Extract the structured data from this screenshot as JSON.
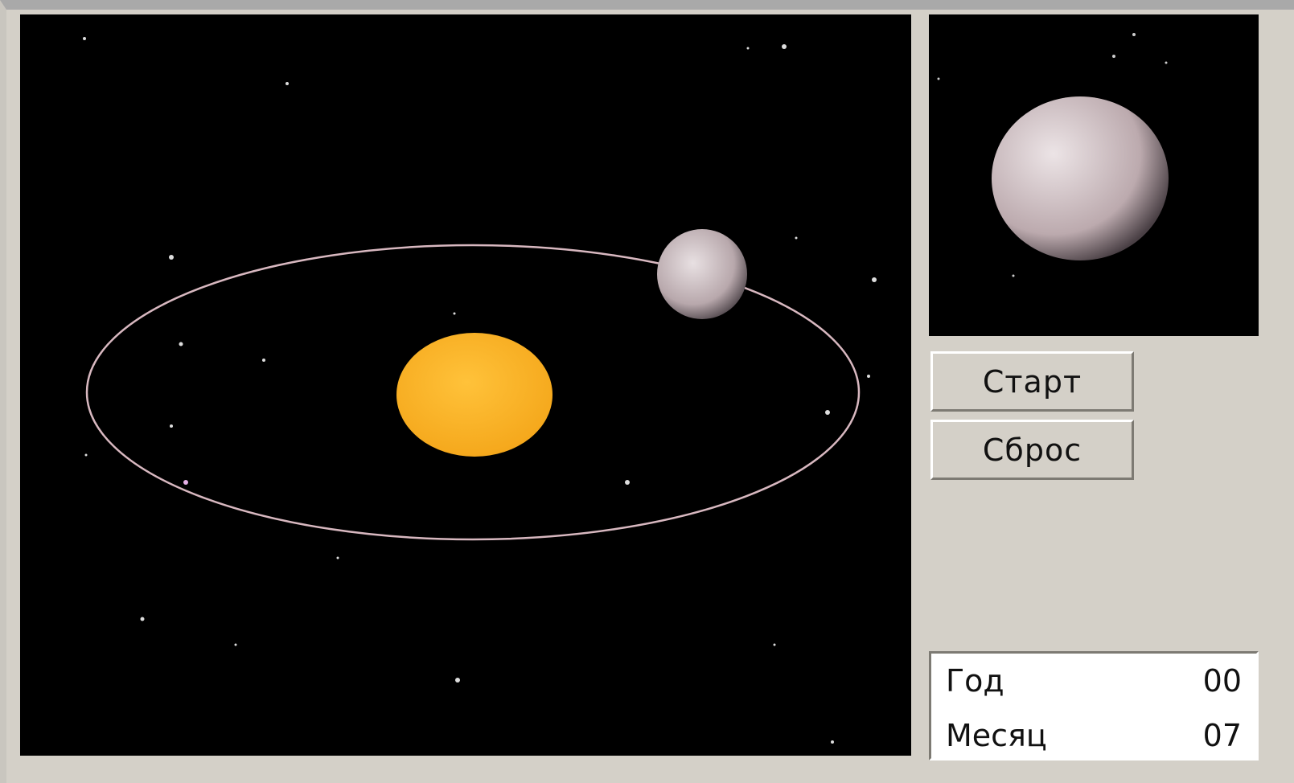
{
  "buttons": [
    {
      "label": "Старт"
    },
    {
      "label": "Сброс"
    }
  ],
  "info": {
    "rows": [
      [
        "Год",
        "00"
      ],
      [
        "Месяц",
        "07"
      ]
    ]
  }
}
